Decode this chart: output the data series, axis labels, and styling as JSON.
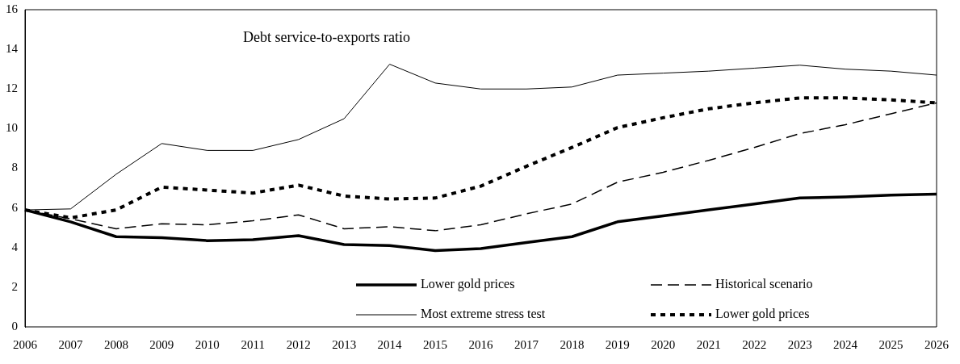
{
  "chart_data": {
    "type": "line",
    "title": "Debt service-to-exports ratio",
    "categories": [
      "2006",
      "2007",
      "2008",
      "2009",
      "2010",
      "2011",
      "2012",
      "2013",
      "2014",
      "2015",
      "2016",
      "2017",
      "2018",
      "2019",
      "2020",
      "2021",
      "2022",
      "2023",
      "2024",
      "2025",
      "2026"
    ],
    "series": [
      {
        "name": "Lower gold prices",
        "color": "#000000",
        "line_style": "solid",
        "values": [
          5.9,
          5.3,
          4.55,
          4.5,
          4.35,
          4.4,
          4.6,
          4.15,
          4.1,
          3.85,
          3.95,
          4.25,
          4.55,
          5.3,
          5.6,
          5.9,
          6.2,
          6.5,
          6.55,
          6.65,
          6.7
        ]
      },
      {
        "name": "Historical scenario",
        "color": "#000000",
        "line_style": "dashed",
        "values": [
          5.9,
          5.45,
          4.95,
          5.2,
          5.15,
          5.35,
          5.65,
          4.95,
          5.05,
          4.85,
          5.15,
          5.7,
          6.2,
          7.3,
          7.8,
          8.4,
          9.05,
          9.75,
          10.2,
          10.75,
          11.3
        ]
      },
      {
        "name": "Most extreme stress test",
        "color": "#000000",
        "line_style": "solid",
        "values": [
          5.9,
          5.95,
          7.7,
          9.25,
          8.9,
          8.9,
          9.45,
          10.5,
          13.25,
          12.3,
          12.0,
          12.0,
          12.1,
          12.7,
          12.8,
          12.9,
          13.05,
          13.2,
          13.0,
          12.9,
          12.7
        ]
      },
      {
        "name": "Lower gold prices",
        "color": "#000000",
        "line_style": "dotted",
        "values": [
          5.9,
          5.5,
          5.9,
          7.05,
          6.9,
          6.75,
          7.15,
          6.6,
          6.45,
          6.5,
          7.1,
          8.1,
          9.05,
          10.05,
          10.55,
          11.0,
          11.3,
          11.55,
          11.55,
          11.45,
          11.3
        ]
      }
    ],
    "ylim": [
      0,
      16
    ],
    "yticks": [
      0,
      2,
      4,
      6,
      8,
      10,
      12,
      14,
      16
    ],
    "grid": false,
    "legend": "bottom",
    "marker": "none"
  }
}
